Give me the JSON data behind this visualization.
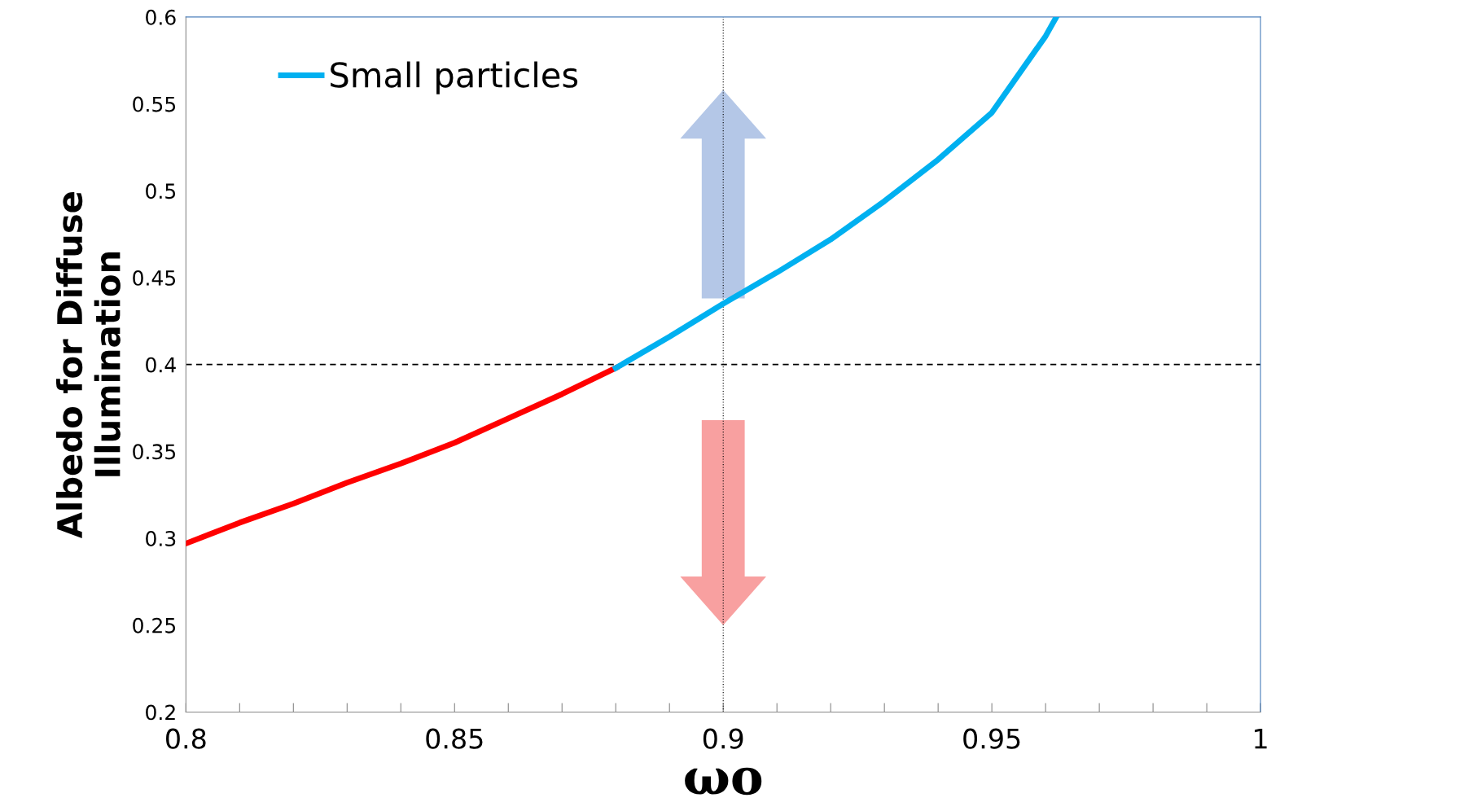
{
  "chart_data": {
    "type": "line",
    "xlabel": "ωo",
    "ylabel": "Albedo for Diffuse Illumination",
    "series": [
      {
        "color": "#ff0000",
        "x": [
          0.8,
          0.81,
          0.82,
          0.83,
          0.84,
          0.85,
          0.86,
          0.87,
          0.88
        ],
        "values": [
          0.297,
          0.309,
          0.32,
          0.332,
          0.343,
          0.355,
          0.369,
          0.383,
          0.398
        ]
      },
      {
        "name": "Small particles",
        "color": "#00b0f0",
        "x": [
          0.88,
          0.89,
          0.9,
          0.91,
          0.92,
          0.93,
          0.94,
          0.95,
          0.96,
          0.962
        ],
        "values": [
          0.398,
          0.416,
          0.435,
          0.453,
          0.472,
          0.494,
          0.518,
          0.545,
          0.589,
          0.6
        ]
      }
    ],
    "xlim": [
      0.8,
      1
    ],
    "ylim": [
      0.2,
      0.6
    ],
    "xticks": [
      0.8,
      {
        "value": 0.81,
        "label": null
      },
      {
        "value": 0.82,
        "label": null
      },
      {
        "value": 0.83,
        "label": null
      },
      {
        "value": 0.84,
        "label": null
      },
      0.85,
      {
        "value": 0.86,
        "label": null
      },
      {
        "value": 0.87,
        "label": null
      },
      {
        "value": 0.88,
        "label": null
      },
      {
        "value": 0.89,
        "label": null
      },
      0.9,
      {
        "value": 0.91,
        "label": null
      },
      {
        "value": 0.92,
        "label": null
      },
      {
        "value": 0.93,
        "label": null
      },
      {
        "value": 0.94,
        "label": null
      },
      0.95,
      {
        "value": 0.96,
        "label": null
      },
      {
        "value": 0.97,
        "label": null
      },
      {
        "value": 0.98,
        "label": null
      },
      {
        "value": 0.99,
        "label": null
      },
      1
    ],
    "yticks": [
      0.2,
      0.25,
      0.3,
      0.35,
      0.4,
      0.45,
      0.5,
      0.55,
      0.6
    ],
    "ref_lines": [
      {
        "axis": "y",
        "value": 0.4,
        "color": "#000000",
        "line_style": "dashed"
      },
      {
        "axis": "x",
        "value": 0.9,
        "color": "#000000",
        "line_style": "dotted"
      }
    ],
    "grid": false,
    "legend": "top left",
    "marker": "none",
    "line_style": "solid"
  }
}
